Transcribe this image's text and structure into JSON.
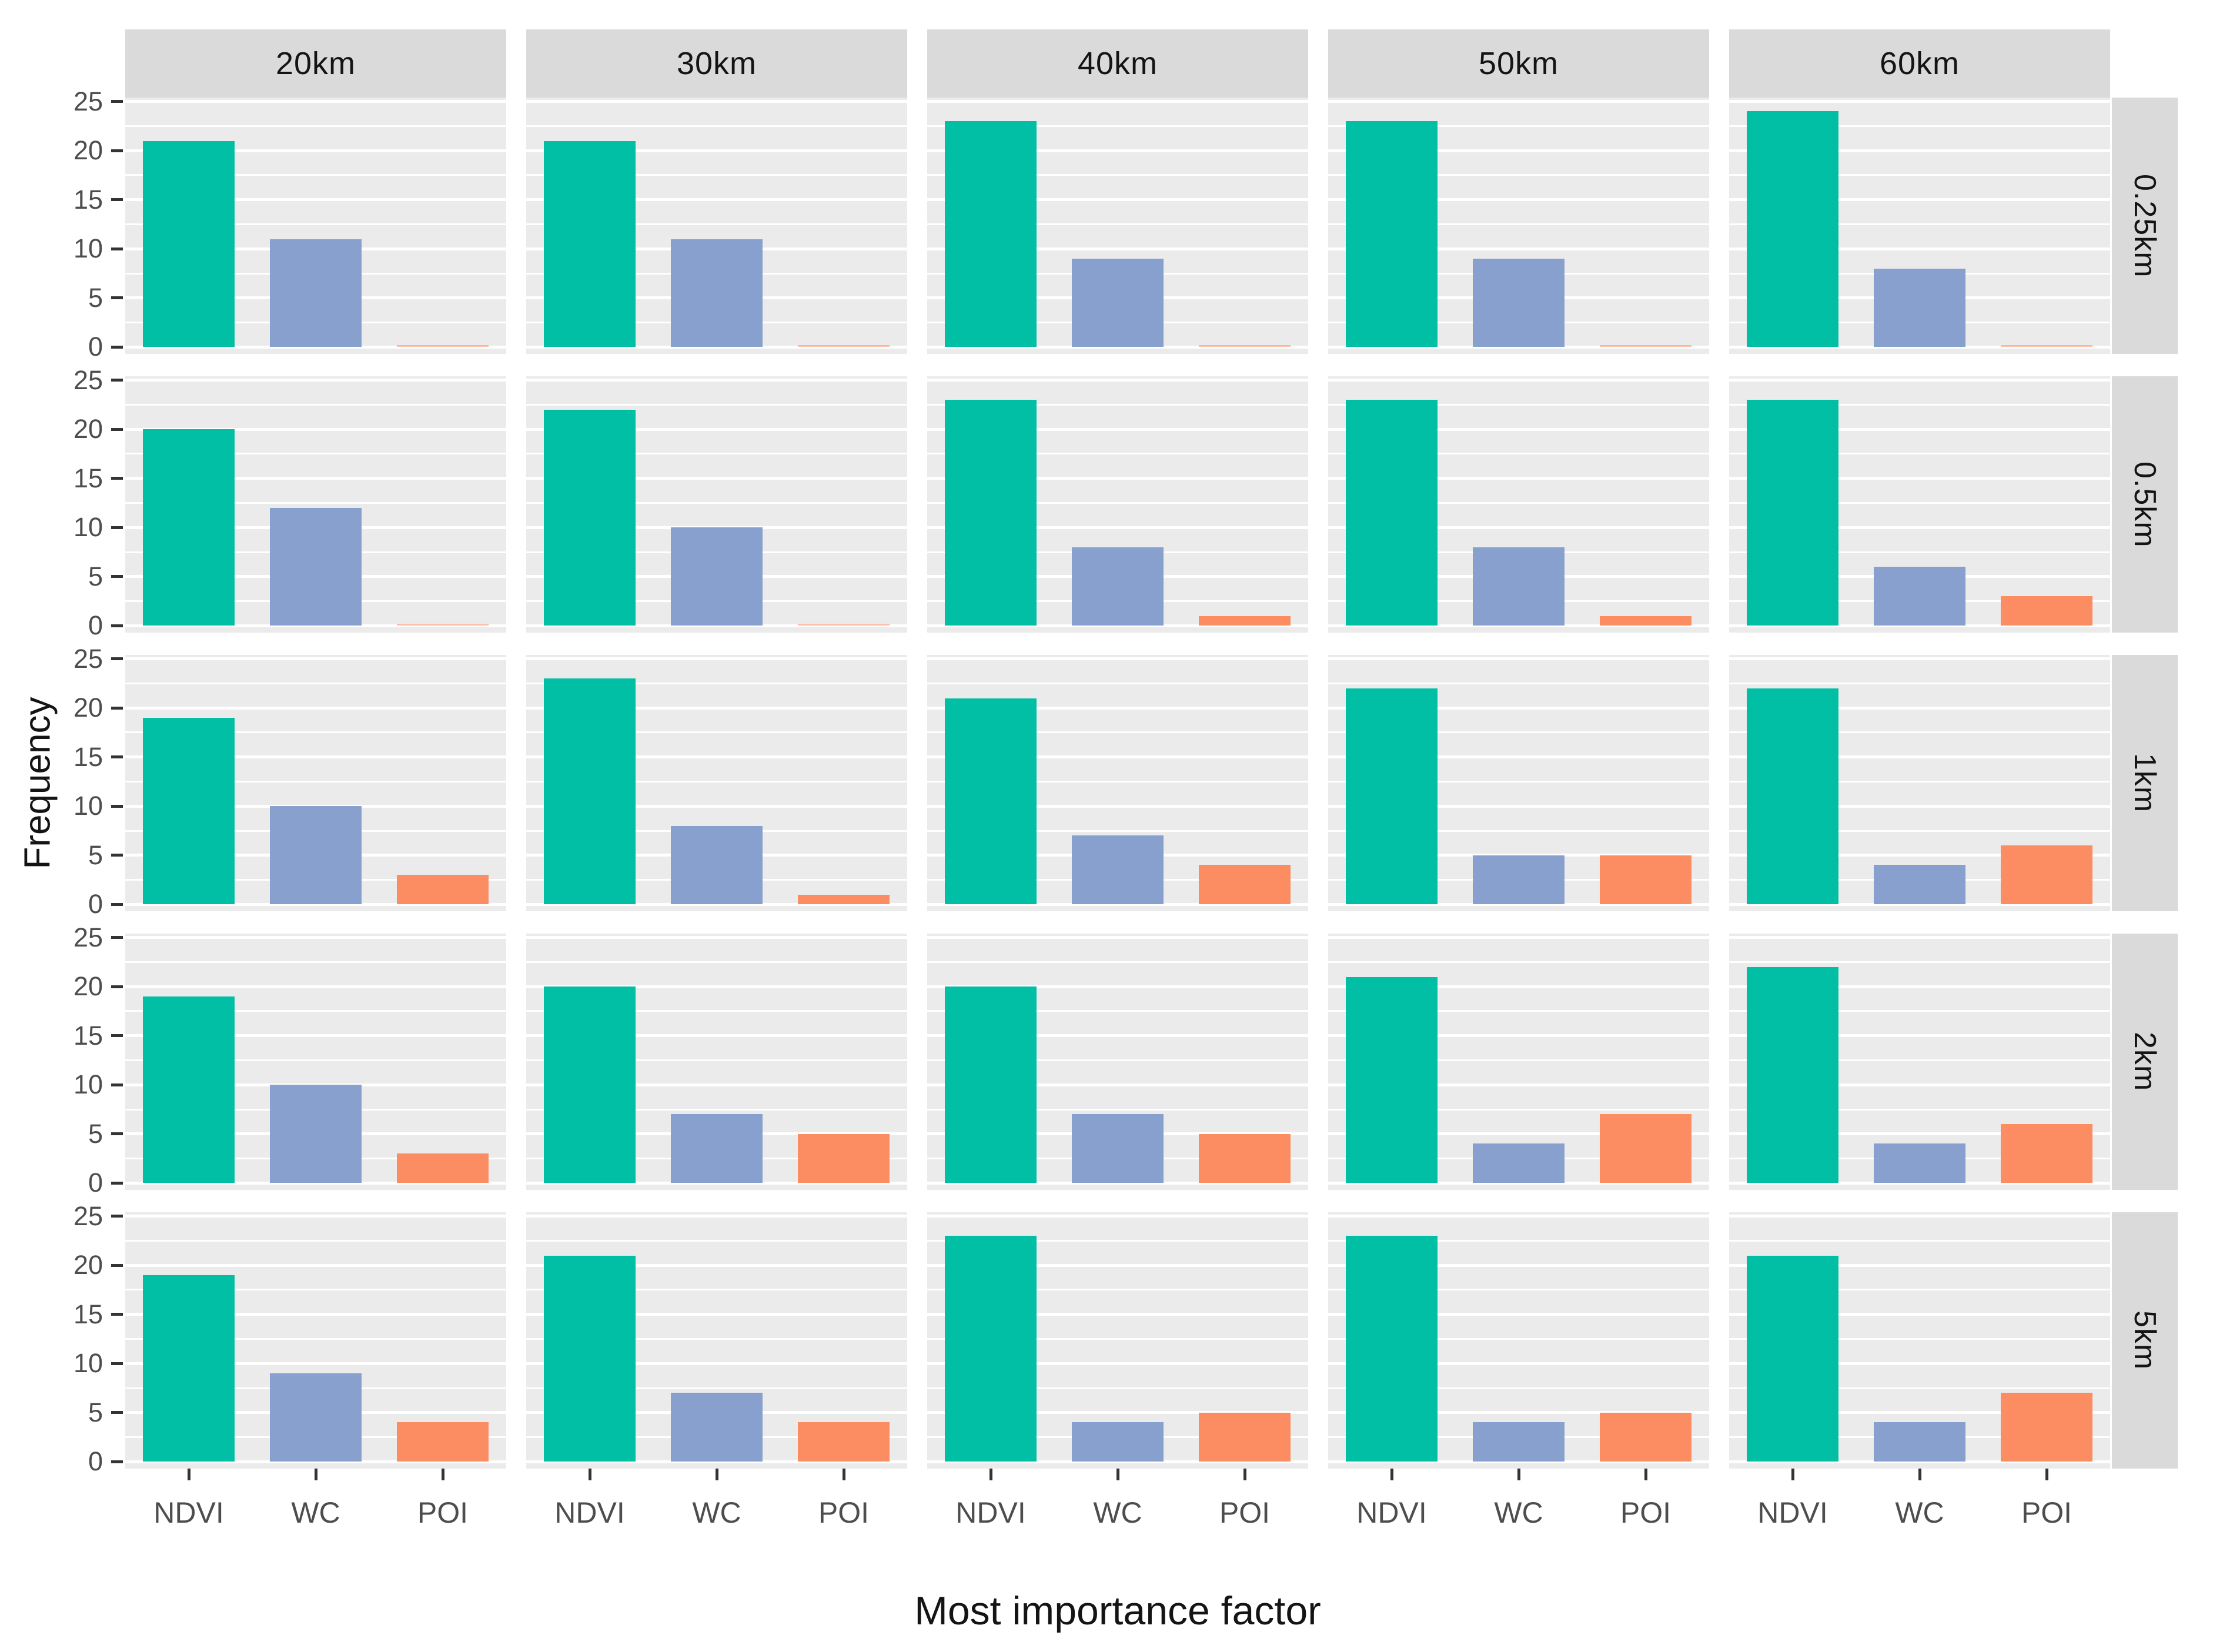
{
  "chart_data": {
    "type": "bar",
    "title": "",
    "xlabel": "Most importance factor",
    "ylabel": "Frequency",
    "categories": [
      "NDVI",
      "WC",
      "POI"
    ],
    "facet_columns": [
      "20km",
      "30km",
      "40km",
      "50km",
      "60km"
    ],
    "facet_rows": [
      "0.25km",
      "0.5km",
      "1km",
      "2km",
      "5km"
    ],
    "y_ticks": [
      25,
      20,
      15,
      10,
      5,
      0
    ],
    "ylim": [
      0,
      25
    ],
    "grid": "white major and minor gridlines on gray panels",
    "legend_position": "none",
    "series_colors": {
      "NDVI": "#00BFA4",
      "WC": "#87A0CD",
      "POI": "#FC8D62"
    },
    "values_by_row": {
      "0.25km": {
        "20km": [
          21,
          11,
          0
        ],
        "30km": [
          21,
          11,
          0
        ],
        "40km": [
          23,
          9,
          0
        ],
        "50km": [
          23,
          9,
          0
        ],
        "60km": [
          24,
          8,
          0
        ]
      },
      "0.5km": {
        "20km": [
          20,
          12,
          0
        ],
        "30km": [
          22,
          10,
          0
        ],
        "40km": [
          23,
          8,
          1
        ],
        "50km": [
          23,
          8,
          1
        ],
        "60km": [
          23,
          6,
          3
        ]
      },
      "1km": {
        "20km": [
          19,
          10,
          3
        ],
        "30km": [
          23,
          8,
          1
        ],
        "40km": [
          21,
          7,
          4
        ],
        "50km": [
          22,
          5,
          5
        ],
        "60km": [
          22,
          4,
          6
        ]
      },
      "2km": {
        "20km": [
          19,
          10,
          3
        ],
        "30km": [
          20,
          7,
          5
        ],
        "40km": [
          20,
          7,
          5
        ],
        "50km": [
          21,
          4,
          7
        ],
        "60km": [
          22,
          4,
          6
        ]
      },
      "5km": {
        "20km": [
          19,
          9,
          4
        ],
        "30km": [
          21,
          7,
          4
        ],
        "40km": [
          23,
          4,
          5
        ],
        "50km": [
          23,
          4,
          5
        ],
        "60km": [
          21,
          4,
          7
        ]
      }
    }
  },
  "style": {
    "background": "#FFFFFF",
    "panel_bg": "#EBEBEB",
    "strip_bg": "#DADADA",
    "grid_color": "#FFFFFF",
    "tick_label_color": "#4D4D4D",
    "tick_mark_color": "#333333",
    "strip_text_color": "#141414",
    "axis_title_color": "#141414"
  }
}
